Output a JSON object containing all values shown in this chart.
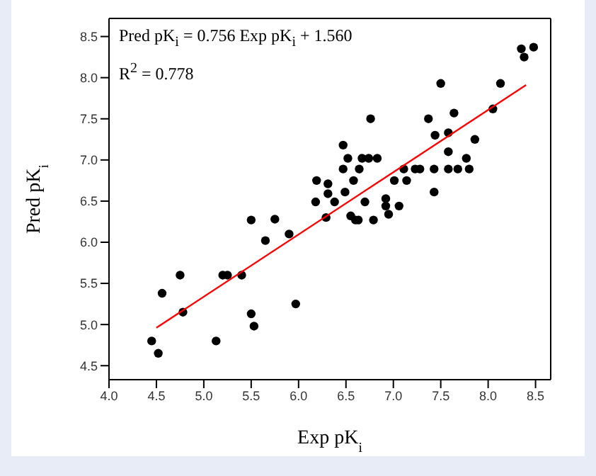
{
  "chart_data": {
    "type": "scatter",
    "xlabel": "Exp pK$_{i}$",
    "ylabel": "Pred pK$_{i}$",
    "annotations": [
      "Pred pK$_{i}$ = 0.756 Exp pK$_{i}$ + 1.560",
      "R$^{2}$ = 0.778"
    ],
    "xlim": [
      4.0,
      8.66
    ],
    "ylim": [
      4.33,
      8.72
    ],
    "xticks": [
      {
        "value": 4,
        "label": "4.0"
      },
      4.5,
      {
        "value": 5,
        "label": "5.0"
      },
      5.5,
      {
        "value": 6,
        "label": "6.0"
      },
      6.5,
      {
        "value": 7,
        "label": "7.0"
      },
      7.5,
      {
        "value": 8,
        "label": "8.0"
      },
      8.5
    ],
    "yticks": [
      4.5,
      {
        "value": 5,
        "label": "5.0"
      },
      5.5,
      {
        "value": 6,
        "label": "6.0"
      },
      6.5,
      {
        "value": 7,
        "label": "7.0"
      },
      7.5,
      {
        "value": 8,
        "label": "8.0"
      },
      8.5
    ],
    "marker": "circle",
    "series": [
      {
        "color": "#000000",
        "x": [
          4.45,
          4.52,
          4.56,
          4.75,
          4.78,
          5.13,
          5.2,
          5.25,
          5.4,
          5.5,
          5.5,
          5.53,
          5.65,
          5.75,
          5.9,
          5.97,
          6.18,
          6.19,
          6.31,
          6.31,
          6.29,
          6.38,
          6.47,
          6.52,
          6.47,
          6.49,
          6.58,
          6.64,
          6.67,
          6.74,
          6.83,
          6.7,
          6.55,
          6.6,
          6.63,
          6.76,
          6.79,
          6.92,
          6.92,
          6.95,
          7.06,
          7.01,
          7.11,
          7.14,
          7.23,
          7.28,
          7.43,
          7.43,
          7.37,
          7.44,
          7.5,
          7.58,
          7.58,
          7.64,
          7.58,
          7.68,
          7.8,
          7.77,
          7.86,
          8.05,
          8.13,
          8.35,
          8.38,
          8.48
        ],
        "values": [
          4.8,
          4.65,
          5.38,
          5.6,
          5.15,
          4.8,
          5.6,
          5.6,
          5.6,
          6.27,
          5.13,
          4.98,
          6.02,
          6.28,
          6.1,
          5.25,
          6.49,
          6.75,
          6.71,
          6.59,
          6.3,
          6.49,
          7.18,
          7.02,
          6.89,
          6.61,
          6.75,
          6.89,
          7.02,
          7.02,
          7.02,
          6.49,
          6.32,
          6.27,
          6.27,
          7.5,
          6.27,
          6.53,
          6.44,
          6.34,
          6.44,
          6.75,
          6.89,
          6.75,
          6.89,
          6.89,
          6.89,
          6.61,
          7.5,
          7.3,
          7.93,
          7.33,
          7.1,
          7.57,
          6.89,
          6.89,
          6.89,
          7.02,
          7.25,
          7.62,
          7.93,
          8.35,
          8.25,
          8.37
        ]
      },
      {
        "type": "line",
        "color": "#ff0000",
        "marker": "none",
        "line_style": "solid",
        "x": [
          4.5,
          8.4
        ],
        "values": [
          4.96,
          7.91
        ]
      }
    ]
  }
}
